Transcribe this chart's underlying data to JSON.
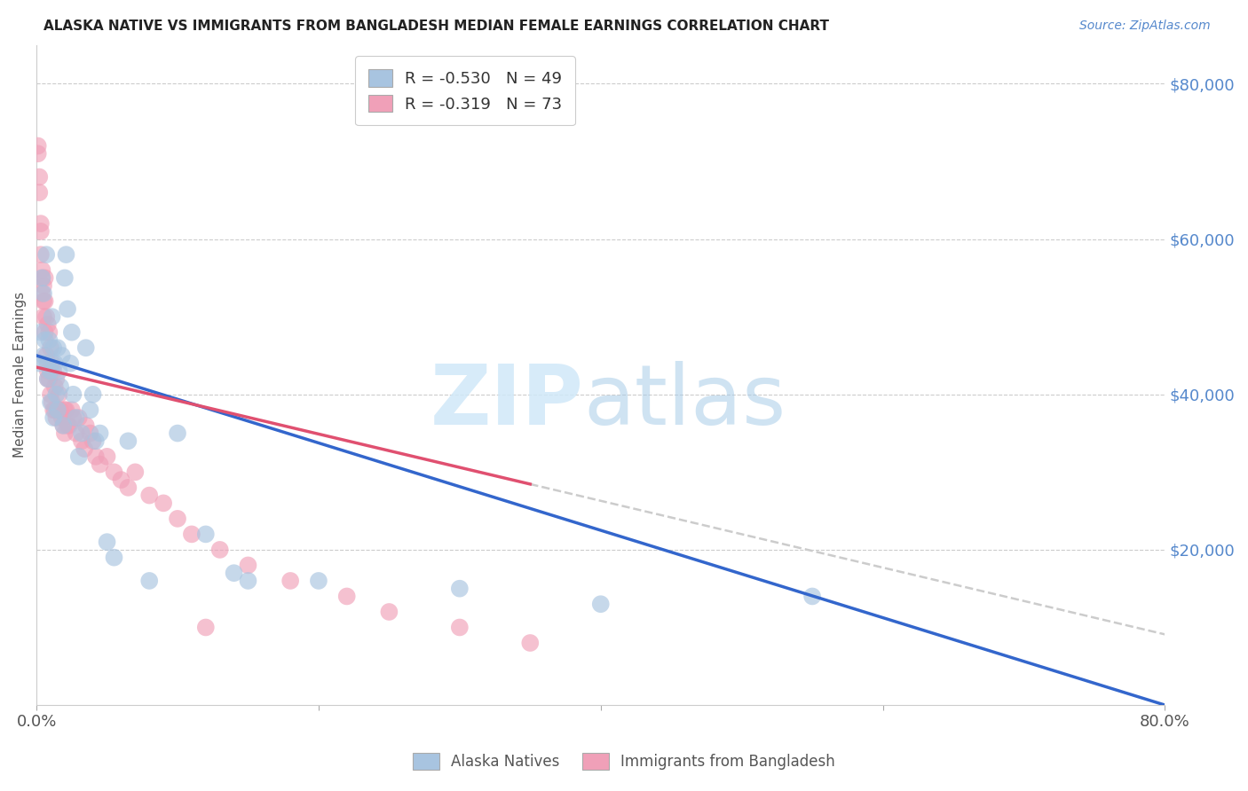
{
  "title": "ALASKA NATIVE VS IMMIGRANTS FROM BANGLADESH MEDIAN FEMALE EARNINGS CORRELATION CHART",
  "source": "Source: ZipAtlas.com",
  "ylabel": "Median Female Earnings",
  "right_yticks": [
    0,
    20000,
    40000,
    60000,
    80000
  ],
  "right_yticklabels": [
    "",
    "$20,000",
    "$40,000",
    "$60,000",
    "$80,000"
  ],
  "xmin": 0.0,
  "xmax": 80.0,
  "ymin": 0,
  "ymax": 85000,
  "blue_R": -0.53,
  "blue_N": 49,
  "pink_R": -0.319,
  "pink_N": 73,
  "blue_color": "#a8c4e0",
  "blue_line_color": "#3366cc",
  "pink_color": "#f0a0b8",
  "pink_line_color": "#e05070",
  "dashed_color": "#cccccc",
  "blue_intercept": 45000,
  "blue_slope": -562.5,
  "pink_intercept": 43500,
  "pink_slope": -430,
  "blue_x": [
    0.2,
    0.3,
    0.4,
    0.5,
    0.5,
    0.6,
    0.7,
    0.7,
    0.8,
    0.9,
    1.0,
    1.0,
    1.1,
    1.2,
    1.2,
    1.3,
    1.4,
    1.5,
    1.5,
    1.6,
    1.7,
    1.8,
    1.9,
    2.0,
    2.1,
    2.2,
    2.4,
    2.5,
    2.6,
    2.8,
    3.0,
    3.2,
    3.5,
    3.8,
    4.0,
    4.2,
    4.5,
    5.0,
    5.5,
    6.5,
    8.0,
    10.0,
    12.0,
    15.0,
    20.0,
    30.0,
    40.0,
    55.0,
    14.0
  ],
  "blue_y": [
    44000,
    48000,
    55000,
    45000,
    53000,
    47000,
    44000,
    58000,
    42000,
    47000,
    39000,
    43000,
    50000,
    46000,
    37000,
    44000,
    40000,
    46000,
    38000,
    43000,
    41000,
    45000,
    36000,
    55000,
    58000,
    51000,
    44000,
    48000,
    40000,
    37000,
    32000,
    35000,
    46000,
    38000,
    40000,
    34000,
    35000,
    21000,
    19000,
    34000,
    16000,
    35000,
    22000,
    16000,
    16000,
    15000,
    13000,
    14000,
    17000
  ],
  "pink_x": [
    0.1,
    0.1,
    0.2,
    0.2,
    0.3,
    0.3,
    0.3,
    0.4,
    0.4,
    0.5,
    0.5,
    0.5,
    0.6,
    0.6,
    0.6,
    0.7,
    0.7,
    0.8,
    0.8,
    0.9,
    0.9,
    1.0,
    1.0,
    1.0,
    1.1,
    1.1,
    1.2,
    1.2,
    1.3,
    1.3,
    1.4,
    1.4,
    1.5,
    1.6,
    1.7,
    1.8,
    1.9,
    2.0,
    2.0,
    2.1,
    2.2,
    2.3,
    2.5,
    2.6,
    2.8,
    3.0,
    3.2,
    3.4,
    3.5,
    3.8,
    4.0,
    4.2,
    4.5,
    5.0,
    5.5,
    6.0,
    6.5,
    7.0,
    8.0,
    9.0,
    10.0,
    11.0,
    13.0,
    15.0,
    18.0,
    22.0,
    25.0,
    30.0,
    35.0,
    0.4,
    0.8,
    0.8,
    12.0
  ],
  "pink_y": [
    72000,
    71000,
    68000,
    66000,
    62000,
    61000,
    58000,
    56000,
    55000,
    54000,
    52000,
    50000,
    55000,
    52000,
    48000,
    50000,
    45000,
    49000,
    44000,
    48000,
    42000,
    46000,
    43000,
    40000,
    44000,
    39000,
    43000,
    38000,
    41000,
    38000,
    42000,
    37000,
    38000,
    40000,
    38000,
    37000,
    36000,
    38000,
    35000,
    38000,
    36000,
    36000,
    38000,
    37000,
    35000,
    37000,
    34000,
    33000,
    36000,
    35000,
    34000,
    32000,
    31000,
    32000,
    30000,
    29000,
    28000,
    30000,
    27000,
    26000,
    24000,
    22000,
    20000,
    18000,
    16000,
    14000,
    12000,
    10000,
    8000,
    53000,
    43000,
    42000,
    10000
  ]
}
